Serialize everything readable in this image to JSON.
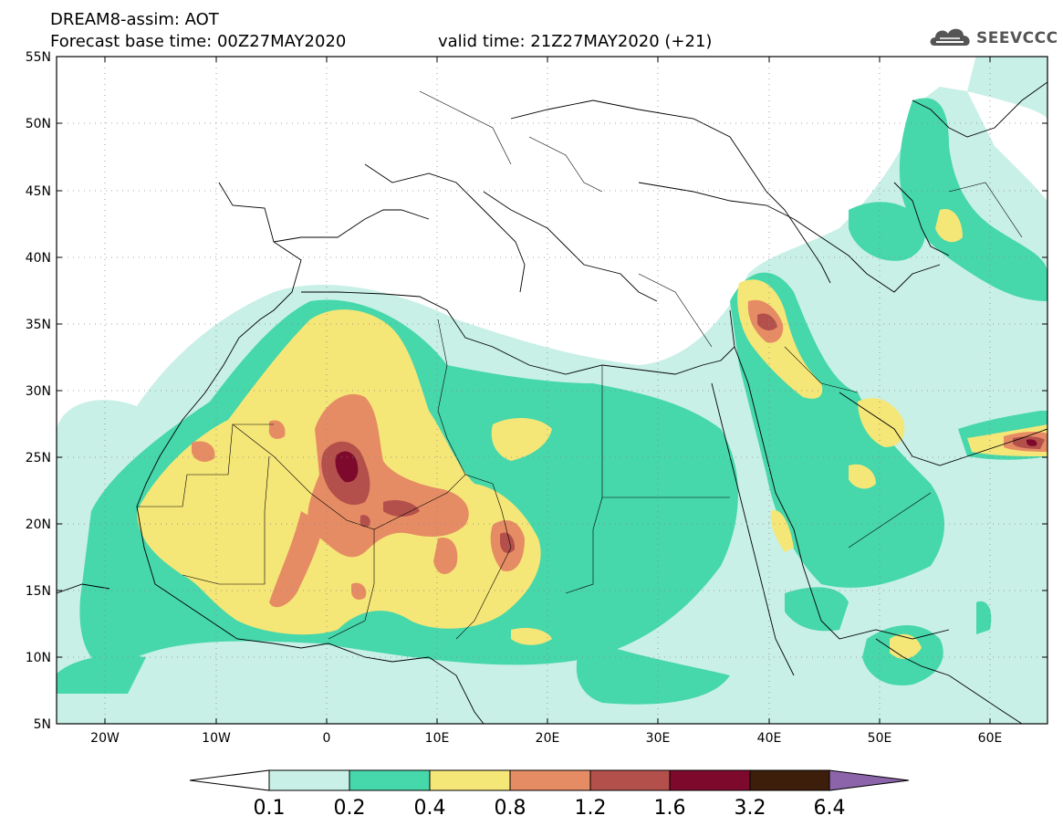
{
  "header": {
    "title": "DREAM8-assim: AOT",
    "base_time": "Forecast base time: 00Z27MAY2020",
    "valid_time": "valid time: 21Z27MAY2020 (+21)"
  },
  "logo": {
    "text": "SEEVCCC",
    "icon": "cloud-icon"
  },
  "map": {
    "lon_range": [
      -25,
      65
    ],
    "lat_range": [
      5,
      55
    ],
    "lat_ticks": [
      "55N",
      "50N",
      "45N",
      "40N",
      "35N",
      "30N",
      "25N",
      "20N",
      "15N",
      "10N",
      "5N"
    ],
    "lon_ticks": [
      "20W",
      "10W",
      "0",
      "10E",
      "20E",
      "30E",
      "40E",
      "50E",
      "60E"
    ]
  },
  "colorbar": {
    "labels": [
      "0.1",
      "0.2",
      "0.4",
      "0.8",
      "1.2",
      "1.6",
      "3.2",
      "6.4"
    ],
    "colors": [
      "#ffffff",
      "#c8f0e6",
      "#46d7aa",
      "#f5e678",
      "#e68c64",
      "#b4504b",
      "#7d0a2d",
      "#3c1e0a",
      "#8c64aa"
    ]
  }
}
